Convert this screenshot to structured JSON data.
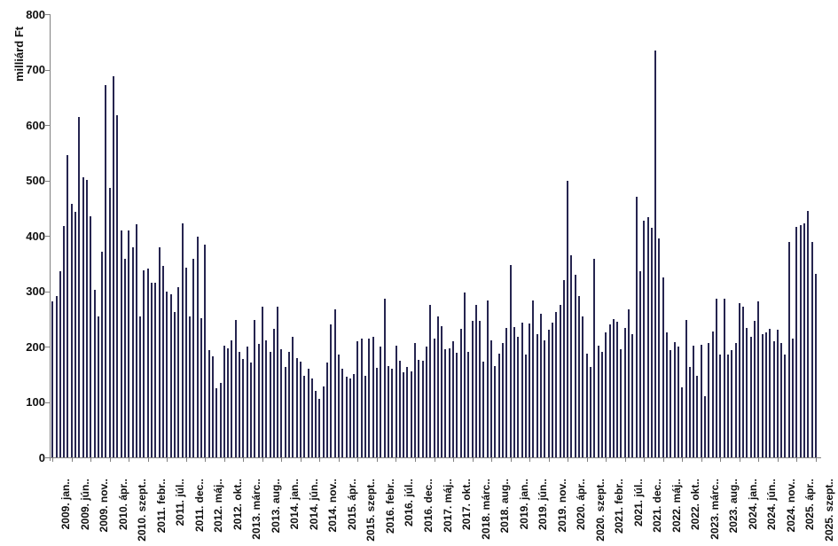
{
  "chart_data": {
    "type": "bar",
    "title": "",
    "y_axis": {
      "title": "milliárd Ft",
      "min": 0,
      "max": 800,
      "tick_step": 100,
      "ticks": [
        0,
        100,
        200,
        300,
        400,
        500,
        600,
        700,
        800
      ]
    },
    "x_axis": {
      "frequency": "monthly",
      "first_month": "2009. jan",
      "last_month": "2025. szept",
      "tick_every": 5,
      "tick_labels": [
        "2009. jan..",
        "2009. jún..",
        "2009. nov..",
        "2010. ápr..",
        "2010. szept..",
        "2011. febr..",
        "2011. júl..",
        "2011. dec..",
        "2012. máj..",
        "2012. okt..",
        "2013. márc..",
        "2013. aug..",
        "2014. jan..",
        "2014. jún..",
        "2014. nov..",
        "2015. ápr..",
        "2015. szept..",
        "2016. febr..",
        "2016. júl..",
        "2016. dec..",
        "2017. máj..",
        "2017. okt..",
        "2018. márc..",
        "2018. aug..",
        "2019. jan..",
        "2019. jún..",
        "2019. nov..",
        "2020. ápr..",
        "2020. szept..",
        "2021. febr..",
        "2021. júl..",
        "2021. dec..",
        "2022. máj..",
        "2022. okt..",
        "2023. márc..",
        "2023. aug..",
        "2024. jan..",
        "2024. jún..",
        "2024. nov..",
        "2025. ápr..",
        "2025. szept.."
      ]
    },
    "legend": "none",
    "grid": "off",
    "bar_color": "#262550",
    "axis_color": "#808080",
    "values": [
      282,
      292,
      336,
      418,
      545,
      458,
      443,
      615,
      505,
      501,
      436,
      303,
      255,
      371,
      672,
      487,
      688,
      618,
      409,
      359,
      410,
      380,
      421,
      255,
      338,
      341,
      315,
      316,
      379,
      346,
      300,
      295,
      263,
      308,
      423,
      343,
      255,
      359,
      399,
      252,
      384,
      193,
      183,
      125,
      135,
      202,
      197,
      212,
      248,
      190,
      178,
      200,
      172,
      248,
      205,
      272,
      212,
      190,
      232,
      272,
      196,
      163,
      190,
      218,
      180,
      173,
      148,
      160,
      142,
      120,
      105,
      128,
      172,
      240,
      268,
      185,
      160,
      145,
      143,
      150,
      210,
      215,
      148,
      215,
      218,
      162,
      200,
      286,
      165,
      160,
      201,
      175,
      154,
      163,
      155,
      207,
      176,
      175,
      200,
      275,
      214,
      255,
      237,
      196,
      197,
      210,
      189,
      232,
      298,
      191,
      246,
      275,
      247,
      173,
      283,
      212,
      165,
      187,
      207,
      234,
      348,
      236,
      218,
      244,
      186,
      242,
      283,
      222,
      260,
      212,
      230,
      244,
      262,
      276,
      320,
      500,
      365,
      330,
      291,
      255,
      188,
      164,
      358,
      202,
      190,
      225,
      240,
      250,
      245,
      196,
      233,
      268,
      223,
      470,
      336,
      428,
      434,
      415,
      735,
      396,
      325,
      226,
      194,
      208,
      200,
      127,
      248,
      164,
      202,
      148,
      204,
      111,
      206,
      228,
      286,
      186,
      287,
      186,
      193,
      207,
      279,
      272,
      233,
      218,
      247,
      282,
      223,
      225,
      232,
      210,
      231,
      207,
      186,
      389,
      215,
      416,
      420,
      423,
      445,
      389,
      331
    ]
  }
}
